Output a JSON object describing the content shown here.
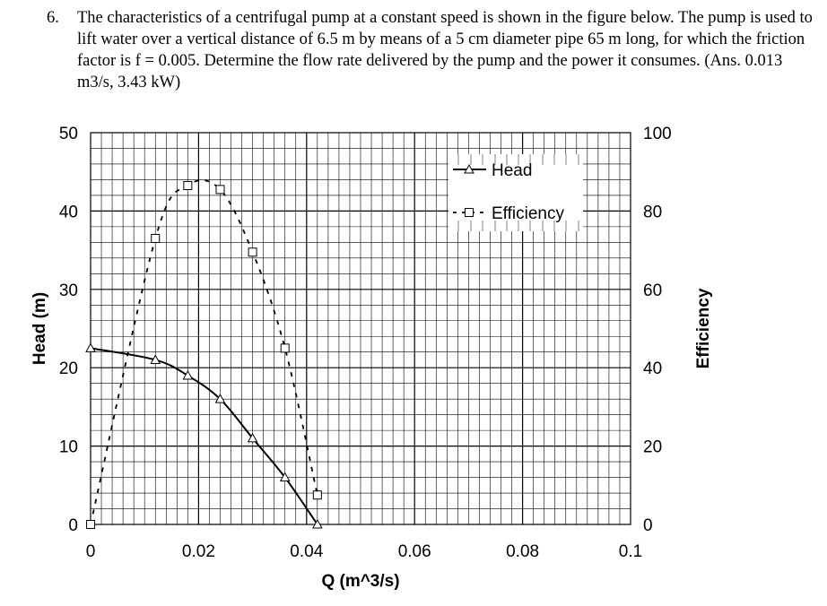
{
  "problem": {
    "number": "6.",
    "text": "The characteristics of a centrifugal pump at a constant speed is shown in the figure below. The pump is used to lift water over a vertical distance of 6.5 m by means of a 5 cm diameter pipe 65 m long, for which the friction factor is f = 0.005. Determine the flow rate delivered by the pump and the power it consumes. (Ans. 0.013 m3/s, 3.43 kW)"
  },
  "chart_data": {
    "type": "line",
    "xlabel": "Q (m^3/s)",
    "ylabel": "Head (m)",
    "y2label": "Efficiency",
    "xlim": [
      0,
      0.1
    ],
    "ylim": [
      0,
      50
    ],
    "y2lim": [
      0,
      100
    ],
    "xticks": [
      "0",
      "0.02",
      "0.04",
      "0.06",
      "0.08",
      "0.1"
    ],
    "yticks": [
      "0",
      "10",
      "20",
      "30",
      "40",
      "50"
    ],
    "y2ticks": [
      "0",
      "20",
      "40",
      "60",
      "80",
      "100"
    ],
    "grid": true,
    "legend_position": "top-right",
    "series": [
      {
        "name": "Head",
        "axis": "left",
        "style": "solid",
        "marker": "triangle",
        "x": [
          0,
          0.012,
          0.018,
          0.024,
          0.03,
          0.036,
          0.042
        ],
        "y": [
          22.5,
          21.0,
          19.0,
          16.0,
          11.0,
          6.0,
          0.0
        ]
      },
      {
        "name": "Efficiency",
        "axis": "right",
        "style": "dashed",
        "marker": "square",
        "x": [
          0,
          0.012,
          0.018,
          0.024,
          0.03,
          0.036,
          0.042
        ],
        "y": [
          0,
          73.0,
          86.5,
          85.5,
          69.5,
          45.0,
          7.5
        ]
      }
    ]
  }
}
